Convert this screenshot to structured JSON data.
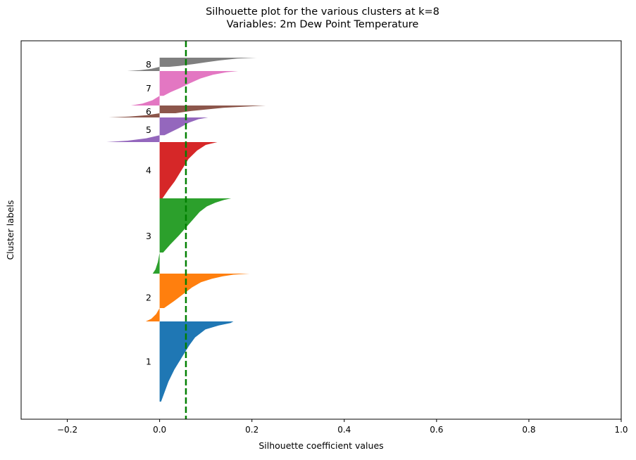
{
  "chart_data": {
    "type": "silhouette",
    "title": "Silhouette plot for the various clusters at k=8",
    "subtitle": "Variables: 2m Dew Point Temperature",
    "xlabel": "Silhouette coefficient values",
    "ylabel": "Cluster labels",
    "xlim": [
      -0.3,
      1.0
    ],
    "xticks": [
      -0.2,
      0.0,
      0.2,
      0.4,
      0.6,
      0.8,
      1.0
    ],
    "xtick_labels": [
      "−0.2",
      "0.0",
      "0.2",
      "0.4",
      "0.6",
      "0.8",
      "1.0"
    ],
    "grid": false,
    "average_silhouette": 0.057,
    "average_line_color": "#008000",
    "clusters": [
      {
        "label": "1",
        "color": "#1f77b4",
        "max": 0.16,
        "min": 0.0,
        "neg_min": 0.0,
        "pos_profile": [
          [
            0,
            1
          ],
          [
            0.02,
            0.96
          ],
          [
            0.05,
            0.8
          ],
          [
            0.1,
            0.62
          ],
          [
            0.2,
            0.48
          ],
          [
            0.3,
            0.4
          ],
          [
            0.45,
            0.3
          ],
          [
            0.6,
            0.2
          ],
          [
            0.75,
            0.12
          ],
          [
            0.9,
            0.06
          ],
          [
            1,
            0.02
          ]
        ]
      },
      {
        "label": "2",
        "color": "#ff7f0e",
        "max": 0.195,
        "min": 0.0,
        "neg_min": -0.03,
        "pos_profile": [
          [
            0,
            1
          ],
          [
            0.03,
            0.82
          ],
          [
            0.08,
            0.7
          ],
          [
            0.15,
            0.58
          ],
          [
            0.25,
            0.46
          ],
          [
            0.4,
            0.36
          ],
          [
            0.6,
            0.26
          ],
          [
            0.8,
            0.16
          ],
          [
            1,
            0.05
          ]
        ]
      },
      {
        "label": "3",
        "color": "#2ca02c",
        "max": 0.155,
        "min": 0.0,
        "neg_min": -0.015,
        "pos_profile": [
          [
            0,
            1
          ],
          [
            0.03,
            0.9
          ],
          [
            0.08,
            0.78
          ],
          [
            0.15,
            0.66
          ],
          [
            0.25,
            0.56
          ],
          [
            0.4,
            0.46
          ],
          [
            0.55,
            0.36
          ],
          [
            0.7,
            0.26
          ],
          [
            0.85,
            0.15
          ],
          [
            1,
            0.05
          ]
        ]
      },
      {
        "label": "4",
        "color": "#d62728",
        "max": 0.125,
        "min": 0.0,
        "neg_min": 0.0,
        "pos_profile": [
          [
            0,
            1
          ],
          [
            0.05,
            0.8
          ],
          [
            0.15,
            0.65
          ],
          [
            0.3,
            0.5
          ],
          [
            0.5,
            0.38
          ],
          [
            0.7,
            0.26
          ],
          [
            0.85,
            0.15
          ],
          [
            1,
            0.05
          ]
        ]
      },
      {
        "label": "5",
        "color": "#9467bd",
        "max": 0.105,
        "min": 0.0,
        "neg_min": -0.115,
        "pos_profile": [
          [
            0,
            1
          ],
          [
            0.1,
            0.8
          ],
          [
            0.3,
            0.6
          ],
          [
            0.6,
            0.4
          ],
          [
            1,
            0.1
          ]
        ]
      },
      {
        "label": "6",
        "color": "#8c564b",
        "max": 0.23,
        "min": 0.0,
        "neg_min": -0.11,
        "pos_profile": [
          [
            0,
            1
          ],
          [
            0.3,
            0.6
          ],
          [
            0.7,
            0.3
          ],
          [
            1,
            0.15
          ]
        ]
      },
      {
        "label": "7",
        "color": "#e377c2",
        "max": 0.17,
        "min": 0.0,
        "neg_min": -0.062,
        "pos_profile": [
          [
            0,
            1
          ],
          [
            0.05,
            0.85
          ],
          [
            0.15,
            0.68
          ],
          [
            0.3,
            0.52
          ],
          [
            0.5,
            0.38
          ],
          [
            0.7,
            0.25
          ],
          [
            0.85,
            0.14
          ],
          [
            1,
            0.05
          ]
        ]
      },
      {
        "label": "8",
        "color": "#7f7f7f",
        "max": 0.21,
        "min": 0.0,
        "neg_min": -0.07,
        "pos_profile": [
          [
            0,
            1
          ],
          [
            0.1,
            0.8
          ],
          [
            0.3,
            0.62
          ],
          [
            0.5,
            0.48
          ],
          [
            0.7,
            0.35
          ],
          [
            0.9,
            0.2
          ],
          [
            1,
            0.1
          ]
        ]
      }
    ]
  }
}
